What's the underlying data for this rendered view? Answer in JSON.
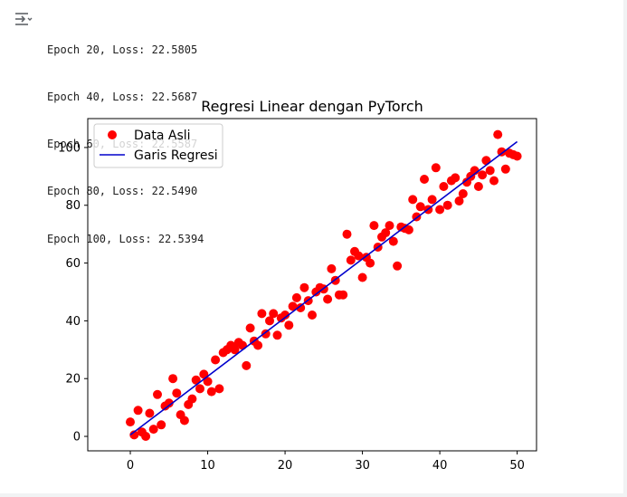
{
  "output_log": [
    "Epoch 20, Loss: 22.5805",
    "Epoch 40, Loss: 22.5687",
    "Epoch 60, Loss: 22.5587",
    "Epoch 80, Loss: 22.5490",
    "Epoch 100, Loss: 22.5394"
  ],
  "icons": {
    "output": "output-toggle-icon"
  },
  "colors": {
    "points": "#ff0000",
    "line": "#0000cc"
  },
  "chart_data": {
    "type": "scatter",
    "title": "Regresi Linear dengan PyTorch",
    "xlabel": "",
    "ylabel": "",
    "xlim": [
      -5.5,
      52.5
    ],
    "ylim": [
      -5,
      110
    ],
    "xticks": [
      0,
      10,
      20,
      30,
      40,
      50
    ],
    "yticks": [
      0,
      20,
      40,
      60,
      80,
      100
    ],
    "grid": false,
    "legend_position": "upper-left",
    "series": [
      {
        "name": "Data Asli",
        "kind": "points",
        "x": [
          0,
          0.5,
          1.0,
          1.5,
          2.0,
          2.5,
          3.0,
          3.5,
          4.0,
          4.5,
          5.0,
          5.5,
          6.0,
          6.5,
          7.0,
          7.5,
          8.0,
          8.5,
          9.0,
          9.5,
          10.0,
          10.5,
          11.0,
          11.5,
          12.0,
          12.5,
          13.0,
          13.5,
          14.0,
          14.5,
          15.0,
          15.5,
          16.0,
          16.5,
          17.0,
          17.5,
          18.0,
          18.5,
          19.0,
          19.5,
          20.0,
          20.5,
          21.0,
          21.5,
          22.0,
          22.5,
          23.0,
          23.5,
          24.0,
          24.5,
          25.0,
          25.5,
          26.0,
          26.5,
          27.0,
          27.5,
          28.0,
          28.5,
          29.0,
          29.5,
          30.0,
          30.5,
          31.0,
          31.5,
          32.0,
          32.5,
          33.0,
          33.5,
          34.0,
          34.5,
          35.0,
          35.5,
          36.0,
          36.5,
          37.0,
          37.5,
          38.0,
          38.5,
          39.0,
          39.5,
          40.0,
          40.5,
          41.0,
          41.5,
          42.0,
          42.5,
          43.0,
          43.5,
          44.0,
          44.5,
          45.0,
          45.5,
          46.0,
          46.5,
          47.0,
          47.5,
          48.0,
          48.5,
          49.0,
          49.5,
          50.0
        ],
        "y": [
          5.0,
          0.5,
          9.0,
          1.5,
          0.0,
          8.0,
          2.5,
          14.5,
          4.0,
          10.5,
          11.5,
          20.0,
          15.0,
          7.5,
          5.5,
          11.0,
          13.0,
          19.5,
          16.5,
          21.5,
          19.0,
          15.5,
          26.5,
          16.5,
          29.0,
          30.0,
          31.5,
          30.0,
          32.5,
          31.5,
          24.5,
          37.5,
          33.0,
          31.5,
          42.5,
          35.5,
          40.0,
          42.5,
          35.0,
          41.0,
          42.0,
          38.5,
          45.0,
          48.0,
          44.5,
          51.5,
          47.0,
          42.0,
          50.0,
          51.5,
          51.0,
          47.5,
          58.0,
          54.0,
          49.0,
          49.0,
          70.0,
          61.0,
          64.0,
          62.5,
          55.0,
          62.0,
          60.0,
          73.0,
          65.5,
          69.0,
          70.5,
          73.0,
          67.5,
          59.0,
          72.5,
          72.0,
          71.5,
          82.0,
          76.0,
          79.5,
          89.0,
          78.5,
          82.0,
          93.0,
          78.5,
          86.5,
          80.0,
          88.5,
          89.5,
          81.5,
          84.0,
          88.0,
          90.0,
          92.0,
          86.5,
          90.5,
          95.5,
          92.0,
          88.5,
          104.5,
          98.5,
          92.5,
          98.0,
          97.5,
          97.0
        ]
      },
      {
        "name": "Garis Regresi",
        "kind": "line",
        "x": [
          0,
          50
        ],
        "y": [
          0.5,
          102
        ]
      }
    ]
  }
}
